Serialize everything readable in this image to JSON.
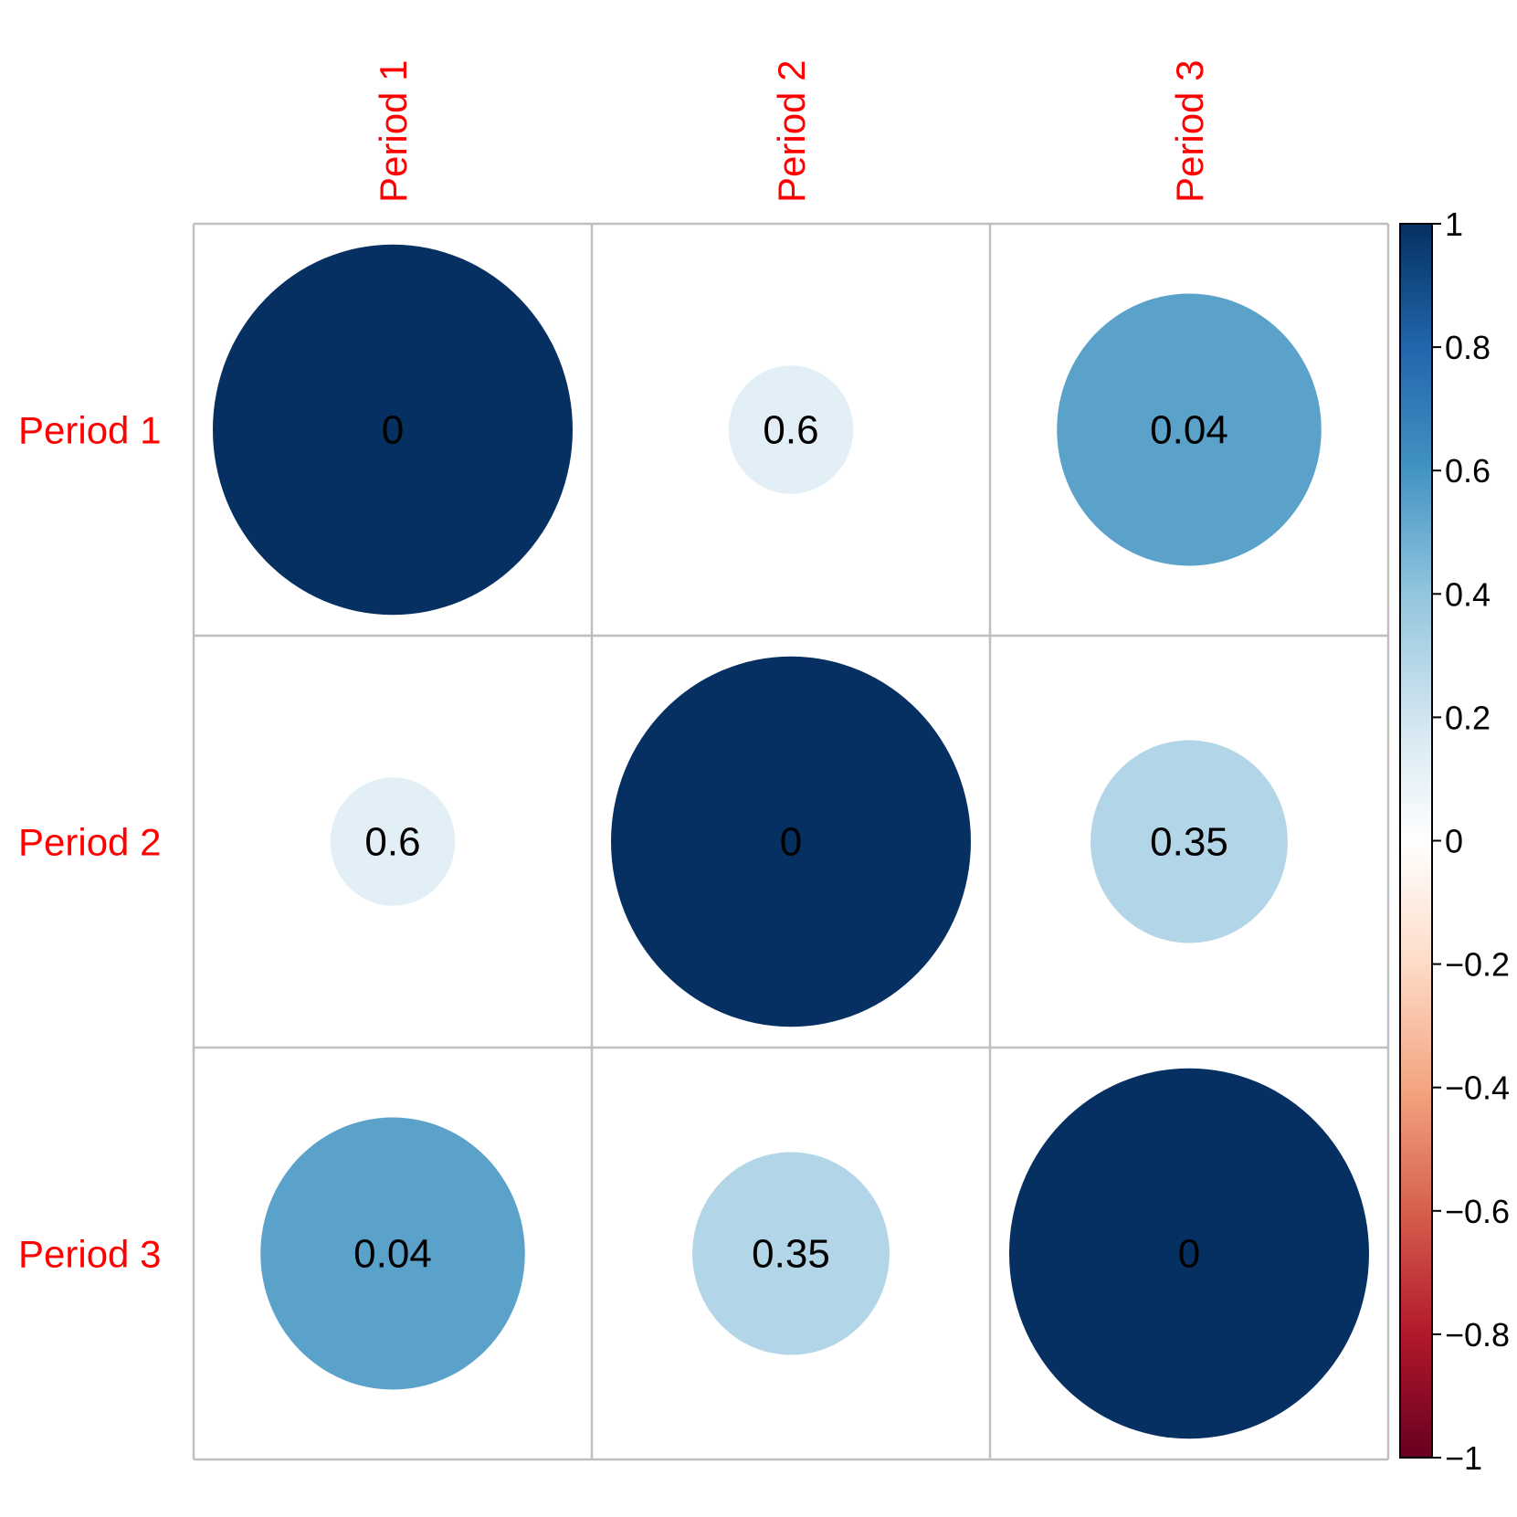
{
  "chart_data": {
    "type": "heatmap",
    "style": "corrplot-circle",
    "row_labels": [
      "Period 1",
      "Period 2",
      "Period 3"
    ],
    "col_labels": [
      "Period 1",
      "Period 2",
      "Period 3"
    ],
    "values": [
      [
        1.0,
        0.12,
        0.54
      ],
      [
        0.12,
        1.0,
        0.3
      ],
      [
        0.54,
        0.3,
        1.0
      ]
    ],
    "cell_labels": [
      [
        "0",
        "0.6",
        "0.04"
      ],
      [
        "0.6",
        "0",
        "0.35"
      ],
      [
        "0.04",
        "0.35",
        "0"
      ]
    ],
    "colorbar": {
      "min": -1,
      "max": 1,
      "tick_values": [
        1,
        0.8,
        0.6,
        0.4,
        0.2,
        0,
        -0.2,
        -0.4,
        -0.6,
        -0.8,
        -1
      ],
      "tick_labels": [
        "1",
        "0.8",
        "0.6",
        "0.4",
        "0.2",
        "0",
        "−0.2",
        "−0.4",
        "−0.6",
        "−0.8",
        "−1"
      ],
      "colors": [
        "#67001f",
        "#b2182b",
        "#d6604d",
        "#f4a582",
        "#fddbc7",
        "#ffffff",
        "#d1e5f0",
        "#92c5de",
        "#4393c3",
        "#2166ac",
        "#053061"
      ]
    },
    "label_color": "#ff0000",
    "grid_color": "#bfbfbf"
  }
}
